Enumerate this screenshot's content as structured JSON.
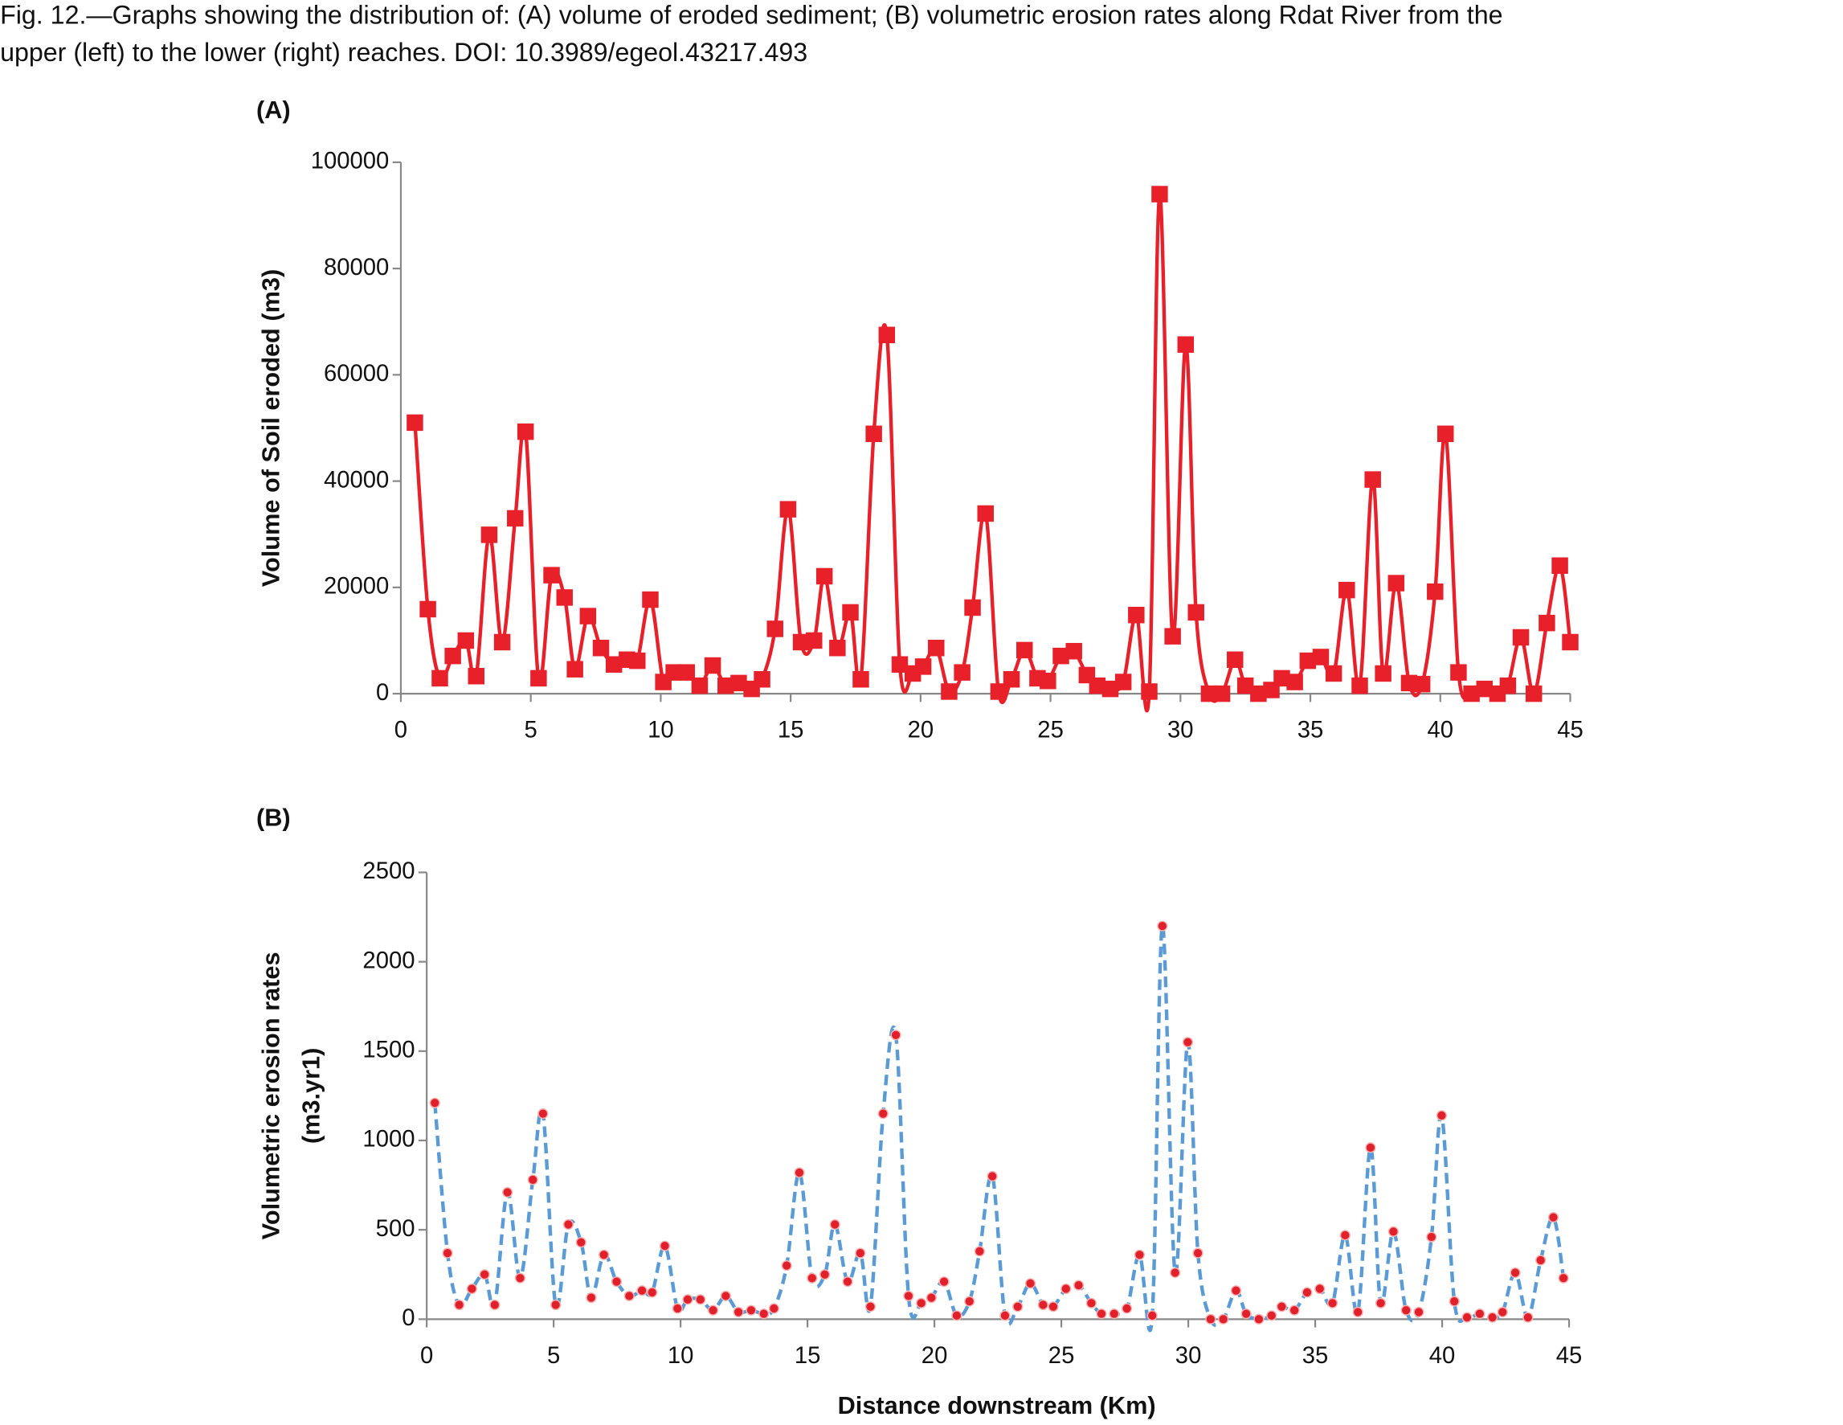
{
  "caption": [
    "Fig. 12.—Graphs showing the distribution of: (A) volume of eroded sediment; (B) volumetric erosion rates along Rdat River from the",
    "upper (left) to the lower (right) reaches. DOI: 10.3989/egeol.43217.493"
  ],
  "xlabel": "Distance downstream (Km)",
  "chart_data": [
    {
      "type": "line",
      "panel": "(A)",
      "ylabel": [
        "Volume of Soil eroded (m3)"
      ],
      "color": "#e8202a",
      "marker": "square",
      "line_style": "solid",
      "x": [
        0.54,
        1.04,
        1.5,
        2.0,
        2.5,
        2.9,
        3.4,
        3.9,
        4.4,
        4.8,
        5.3,
        5.8,
        6.3,
        6.7,
        7.2,
        7.7,
        8.2,
        8.7,
        9.1,
        9.6,
        10.1,
        10.5,
        11.0,
        11.5,
        12.0,
        12.5,
        13.0,
        13.5,
        13.9,
        14.4,
        14.9,
        15.4,
        15.9,
        16.3,
        16.8,
        17.3,
        17.7,
        18.2,
        18.7,
        19.2,
        19.7,
        20.1,
        20.6,
        21.1,
        21.6,
        22.0,
        22.5,
        23.0,
        23.5,
        24.0,
        24.5,
        24.9,
        25.4,
        25.9,
        26.4,
        26.8,
        27.3,
        27.8,
        28.3,
        28.8,
        29.2,
        29.7,
        30.2,
        30.6,
        31.1,
        31.6,
        32.1,
        32.5,
        33.0,
        33.5,
        33.9,
        34.4,
        34.9,
        35.4,
        35.9,
        36.4,
        36.9,
        37.4,
        37.8,
        38.3,
        38.8,
        39.3,
        39.8,
        40.2,
        40.7,
        41.2,
        41.7,
        42.2,
        42.6,
        43.1,
        43.6,
        44.1,
        44.6,
        45.0
      ],
      "values": [
        51000,
        15900,
        2900,
        7100,
        10000,
        3300,
        29900,
        9700,
        33000,
        49300,
        2900,
        22300,
        18100,
        4600,
        14600,
        8600,
        5500,
        6400,
        6200,
        17700,
        2200,
        4000,
        4000,
        1500,
        5300,
        1500,
        2000,
        900,
        2700,
        12200,
        34700,
        9700,
        10000,
        22100,
        8600,
        15300,
        2700,
        48900,
        67500,
        5500,
        3800,
        5100,
        8600,
        400,
        4000,
        16200,
        33900,
        400,
        2700,
        8200,
        2900,
        2400,
        7100,
        8000,
        3500,
        1500,
        900,
        2200,
        14800,
        400,
        94000,
        10800,
        65700,
        15300,
        0,
        0,
        6400,
        1500,
        0,
        700,
        2900,
        2200,
        6200,
        6900,
        3800,
        19500,
        1500,
        40300,
        3800,
        20800,
        2000,
        1800,
        19200,
        48900,
        4000,
        0,
        900,
        0,
        1500,
        10600,
        0,
        13300,
        24100,
        9700
      ],
      "xlim": [
        0,
        45
      ],
      "xticks": [
        0,
        5,
        10,
        15,
        20,
        25,
        30,
        35,
        40,
        45
      ],
      "ylim": [
        0,
        100000
      ],
      "yticks": [
        0,
        20000,
        40000,
        60000,
        80000,
        100000
      ]
    },
    {
      "type": "line",
      "panel": "(B)",
      "ylabel": [
        "Volumetric erosion rates",
        "(m3.yr1)"
      ],
      "color": "#5b9bd5",
      "marker_color": "#e0202a",
      "marker": "dot",
      "line_style": "dashed",
      "x": [
        0.32,
        0.82,
        1.28,
        1.78,
        2.28,
        2.68,
        3.18,
        3.68,
        4.18,
        4.58,
        5.08,
        5.58,
        6.08,
        6.48,
        6.98,
        7.48,
        7.98,
        8.48,
        8.88,
        9.38,
        9.88,
        10.28,
        10.78,
        11.28,
        11.78,
        12.28,
        12.78,
        13.28,
        13.68,
        14.18,
        14.68,
        15.18,
        15.68,
        16.08,
        16.58,
        17.08,
        17.48,
        17.98,
        18.48,
        18.98,
        19.48,
        19.88,
        20.38,
        20.88,
        21.38,
        21.78,
        22.28,
        22.78,
        23.28,
        23.78,
        24.28,
        24.68,
        25.18,
        25.68,
        26.18,
        26.58,
        27.08,
        27.58,
        28.08,
        28.58,
        28.98,
        29.48,
        29.98,
        30.38,
        30.88,
        31.38,
        31.88,
        32.28,
        32.78,
        33.28,
        33.68,
        34.18,
        34.68,
        35.18,
        35.68,
        36.18,
        36.68,
        37.18,
        37.58,
        38.08,
        38.58,
        39.08,
        39.58,
        39.98,
        40.48,
        40.98,
        41.48,
        41.98,
        42.38,
        42.88,
        43.38,
        43.88,
        44.38,
        44.78
      ],
      "values": [
        1210,
        370,
        80,
        170,
        250,
        80,
        710,
        230,
        780,
        1150,
        80,
        530,
        430,
        120,
        360,
        210,
        130,
        160,
        150,
        410,
        60,
        110,
        110,
        50,
        130,
        40,
        50,
        30,
        60,
        300,
        820,
        230,
        250,
        530,
        210,
        370,
        70,
        1150,
        1590,
        130,
        90,
        120,
        210,
        20,
        100,
        380,
        800,
        20,
        70,
        200,
        80,
        70,
        170,
        190,
        90,
        30,
        30,
        60,
        360,
        20,
        2200,
        260,
        1550,
        370,
        0,
        0,
        160,
        30,
        0,
        20,
        70,
        50,
        150,
        170,
        90,
        470,
        40,
        960,
        90,
        490,
        50,
        40,
        460,
        1140,
        100,
        10,
        30,
        10,
        40,
        260,
        10,
        330,
        570,
        230
      ],
      "xlim": [
        0,
        45
      ],
      "xticks": [
        0,
        5,
        10,
        15,
        20,
        25,
        30,
        35,
        40,
        45
      ],
      "ylim": [
        0,
        2500
      ],
      "yticks": [
        0,
        500,
        1000,
        1500,
        2000,
        2500
      ]
    }
  ]
}
